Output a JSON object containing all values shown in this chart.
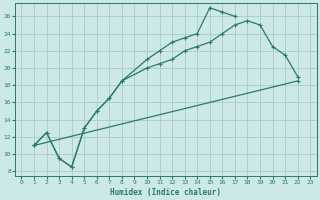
{
  "xlabel": "Humidex (Indice chaleur)",
  "bg_color": "#cce8e8",
  "line_color": "#2a7a6a",
  "grid_color": "#aacaca",
  "xlim": [
    -0.5,
    23.5
  ],
  "ylim": [
    7.5,
    27.5
  ],
  "xticks": [
    0,
    1,
    2,
    3,
    4,
    5,
    6,
    7,
    8,
    9,
    10,
    11,
    12,
    13,
    14,
    15,
    16,
    17,
    18,
    19,
    20,
    21,
    22,
    23
  ],
  "yticks": [
    8,
    10,
    12,
    14,
    16,
    18,
    20,
    22,
    24,
    26
  ],
  "line1_x": [
    1,
    2,
    3,
    4,
    5,
    6,
    7,
    8,
    10,
    11,
    12,
    13,
    14,
    15,
    16,
    17
  ],
  "line1_y": [
    11,
    12.5,
    9.5,
    8.5,
    13,
    15,
    16.5,
    18.5,
    21,
    22,
    23,
    23.5,
    24,
    27,
    26.5,
    26
  ],
  "line2_x": [
    1,
    2,
    3,
    4,
    5,
    6,
    7,
    8,
    10,
    11,
    12,
    13,
    14,
    15,
    16,
    17,
    18,
    19,
    20,
    21,
    22
  ],
  "line2_y": [
    11,
    12.5,
    9.5,
    8.5,
    13,
    15,
    16.5,
    18.5,
    20,
    20.5,
    21,
    22,
    22.5,
    23,
    24,
    25,
    25.5,
    25,
    22.5,
    21.5,
    19
  ],
  "line3_x": [
    1,
    22
  ],
  "line3_y": [
    11,
    18.5
  ]
}
